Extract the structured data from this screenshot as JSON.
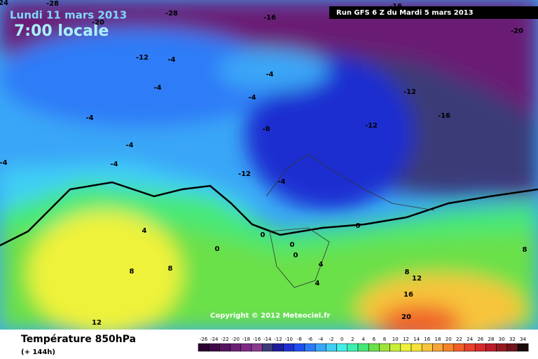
{
  "header": {
    "date": "Lundi 11 mars 2013",
    "time": "7:00 locale",
    "run": "Run GFS 6 Z du Mardi 5 mars 2013"
  },
  "copyright": "Copyright © 2012 Meteociel.fr",
  "footer": {
    "title": "Température 850hPa",
    "subtitle": "(+ 144h)"
  },
  "contour_labels": [
    "24",
    "-28",
    "-20",
    "-28",
    "-16",
    "-16",
    "-20",
    "-12",
    "-4",
    "-4",
    "-4",
    "-12",
    "-4",
    "-4",
    "-4",
    "-8",
    "-12",
    "-16",
    "-4",
    "-4",
    "-12",
    "-4",
    "0",
    "0",
    "4",
    "0",
    "0",
    "0",
    "4",
    "4",
    "8",
    "8",
    "8",
    "8",
    "12",
    "16",
    "12",
    "20"
  ],
  "legend": {
    "values": [
      -26,
      -24,
      -22,
      -20,
      -18,
      -16,
      -14,
      -12,
      -10,
      -8,
      -6,
      -4,
      -2,
      0,
      2,
      4,
      6,
      8,
      10,
      12,
      14,
      16,
      18,
      20,
      22,
      24,
      26,
      28,
      30,
      32,
      34
    ],
    "colors": [
      "#2a0030",
      "#3d0a45",
      "#55155e",
      "#6a1f74",
      "#7d2a87",
      "#8a3a8f",
      "#3b3b78",
      "#1d1d9c",
      "#1f2fd0",
      "#2050f0",
      "#2e7bf7",
      "#3aa6f7",
      "#40cff5",
      "#42efe8",
      "#3ef0b0",
      "#46e878",
      "#6ae04a",
      "#9ee33a",
      "#c8ee3a",
      "#eef23a",
      "#f6e23a",
      "#f7c53a",
      "#f7a53a",
      "#f5842a",
      "#f0602a",
      "#e8402a",
      "#d82a2a",
      "#bb1e2a",
      "#961a22",
      "#6e141a",
      "#1a0a0a"
    ]
  }
}
